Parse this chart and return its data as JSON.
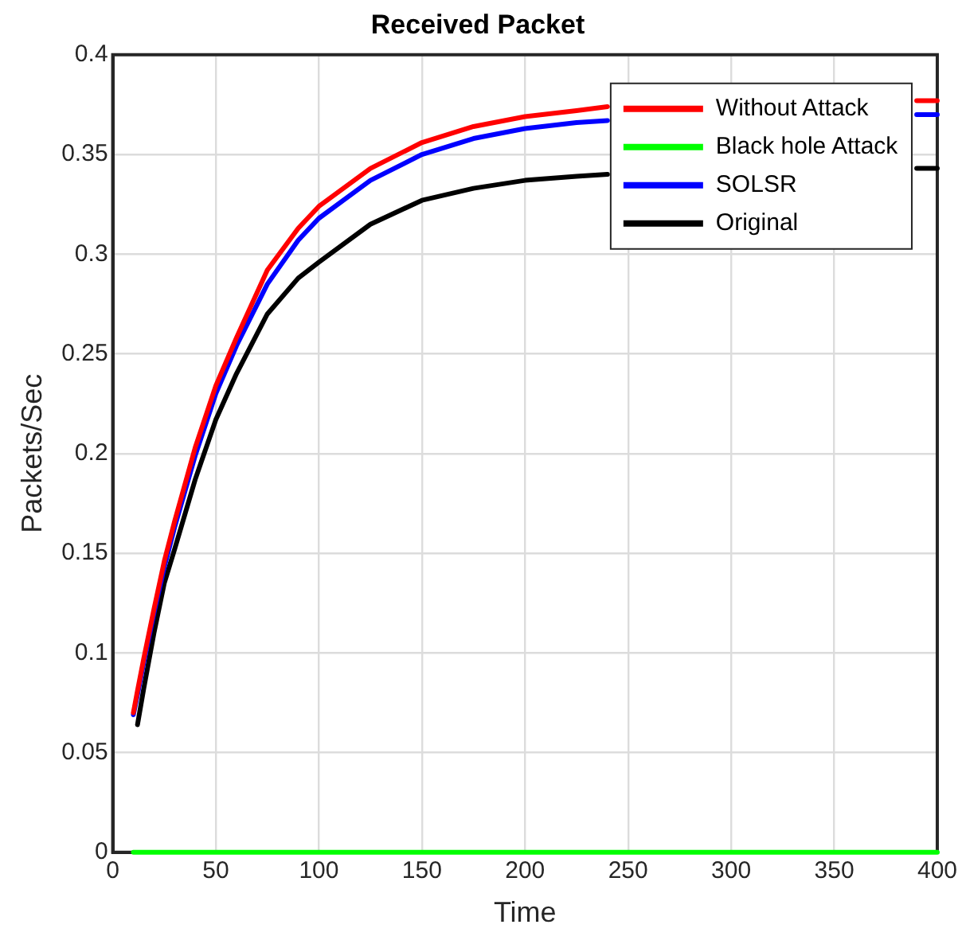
{
  "chart_data": {
    "type": "line",
    "title": "Received Packet",
    "xlabel": "Time",
    "ylabel": "Packets/Sec",
    "x": [
      10,
      12,
      15,
      20,
      25,
      30,
      40,
      50,
      60,
      75,
      90,
      100,
      125,
      150,
      175,
      200,
      225,
      240,
      300,
      390,
      400
    ],
    "series": [
      {
        "name": "Without Attack",
        "color": "#ff0000",
        "values": [
          0.07,
          0.081,
          0.097,
          0.122,
          0.146,
          0.166,
          0.203,
          0.234,
          0.258,
          0.292,
          0.313,
          0.324,
          0.343,
          0.356,
          0.364,
          0.369,
          0.372,
          0.374,
          null,
          0.377,
          0.377
        ]
      },
      {
        "name": "Black hole Attack",
        "color": "#00ff00",
        "values": [
          0,
          0,
          0,
          0,
          0,
          0,
          0,
          0,
          0,
          0,
          0,
          0,
          0,
          0,
          0,
          0,
          0,
          0,
          0,
          0,
          0
        ]
      },
      {
        "name": "SOLSR",
        "color": "#0000ff",
        "values": [
          0.069,
          0.079,
          0.095,
          0.12,
          0.143,
          0.163,
          0.199,
          0.23,
          0.254,
          0.285,
          0.307,
          0.318,
          0.337,
          0.35,
          0.358,
          0.363,
          0.366,
          0.367,
          null,
          0.37,
          0.37
        ]
      },
      {
        "name": "Original",
        "color": "#000000",
        "values": [
          null,
          0.064,
          0.082,
          0.11,
          0.135,
          0.152,
          0.187,
          0.217,
          0.24,
          0.27,
          0.288,
          0.296,
          0.315,
          0.327,
          0.333,
          0.337,
          0.339,
          0.34,
          null,
          0.343,
          0.343
        ]
      }
    ],
    "xlim": [
      0,
      400
    ],
    "xticks": [
      0,
      50,
      100,
      150,
      200,
      250,
      300,
      350,
      400
    ],
    "ylim": [
      0,
      0.4
    ],
    "yticks": [
      0,
      0.05,
      0.1,
      0.15,
      0.2,
      0.25,
      0.3,
      0.35,
      0.4
    ],
    "grid": true,
    "legend": "top right",
    "marker": "none",
    "line_style": "solid"
  }
}
